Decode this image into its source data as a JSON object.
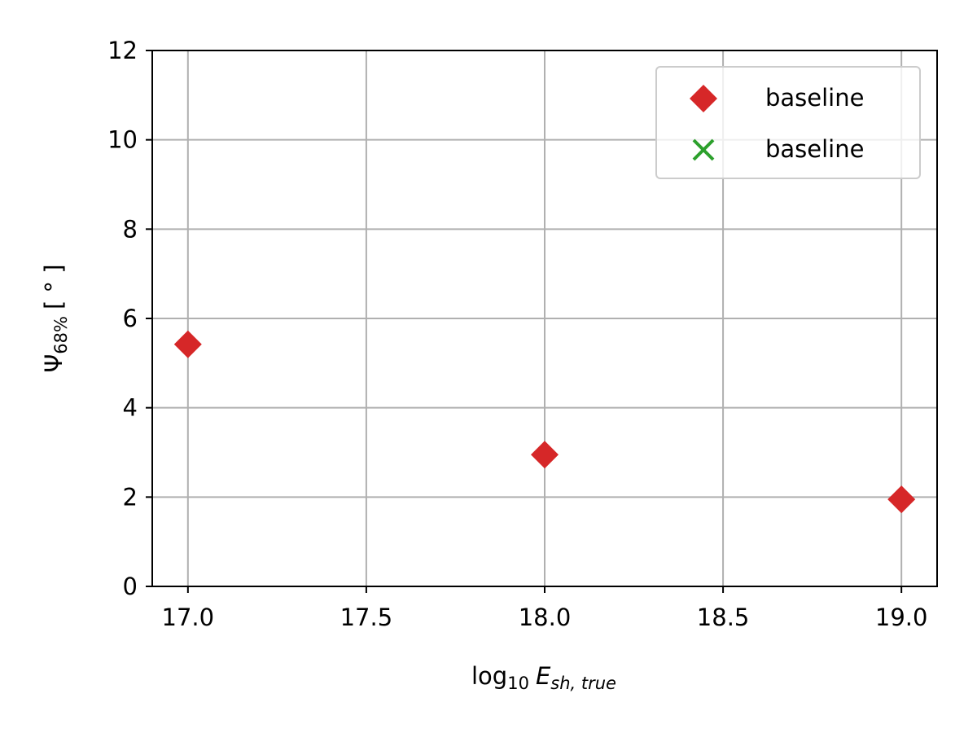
{
  "chart_data": {
    "type": "scatter",
    "xlabel": {
      "base": "log",
      "base_sub": "10",
      "var": "E",
      "var_sub": "sh, true"
    },
    "ylabel": {
      "base": "Ψ",
      "base_sub": "68%",
      "unit": "[ ° ]"
    },
    "xlim": [
      16.9,
      19.1
    ],
    "ylim": [
      0,
      12
    ],
    "xticks": [
      17.0,
      17.5,
      18.0,
      18.5,
      19.0
    ],
    "xtick_labels": [
      "17.0",
      "17.5",
      "18.0",
      "18.5",
      "19.0"
    ],
    "yticks": [
      0,
      2,
      4,
      6,
      8,
      10,
      12
    ],
    "ytick_labels": [
      "0",
      "2",
      "4",
      "6",
      "8",
      "10",
      "12"
    ],
    "grid": true,
    "legend_position": "top-right",
    "series": [
      {
        "name": "baseline",
        "marker": "diamond",
        "color": "#d62728",
        "x": [
          17.0,
          18.0,
          19.0
        ],
        "y": [
          5.42,
          2.95,
          1.95
        ]
      },
      {
        "name": "baseline",
        "marker": "x",
        "color": "#2ca02c",
        "x": [],
        "y": []
      }
    ]
  }
}
